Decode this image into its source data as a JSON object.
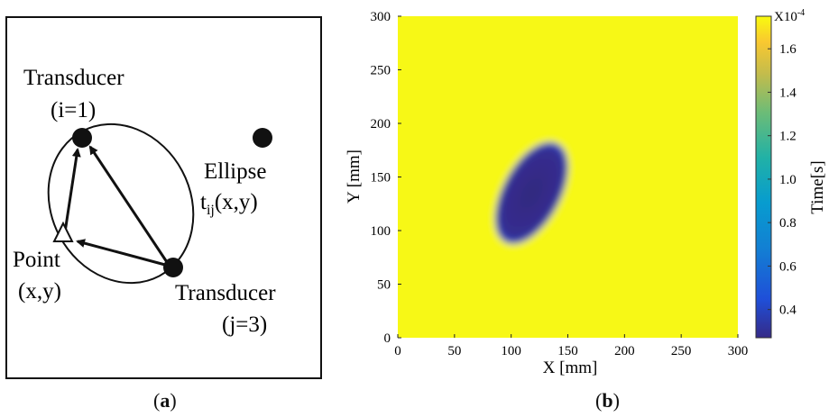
{
  "panel_a": {
    "caption_open": "(",
    "caption_letter": "a",
    "caption_close": ")",
    "transducer_1_name": "Transducer",
    "transducer_1_index": "(i=1)",
    "transducer_2_name": "Transducer",
    "transducer_2_index": "(j=3)",
    "ellipse_label": "Ellipse",
    "ellipse_func_t": "t",
    "ellipse_func_sub": "ij",
    "ellipse_func_args": "(x,y)",
    "point_label": "Point",
    "point_coords": "(x,y)"
  },
  "panel_b": {
    "caption_open": "(",
    "caption_letter": "b",
    "caption_close": ")",
    "colormap": "parula",
    "chart_data": {
      "type": "heatmap",
      "xlabel": "X [mm]",
      "ylabel": "Y [mm]",
      "xlim": [
        0,
        300
      ],
      "ylim": [
        0,
        300
      ],
      "x_ticks": [
        "0",
        "50",
        "100",
        "150",
        "200",
        "250",
        "300"
      ],
      "y_ticks": [
        "0",
        "50",
        "100",
        "150",
        "200",
        "250",
        "300"
      ],
      "colorbar": {
        "label": "Time[s]",
        "multiplier": "X10",
        "exponent": "-4",
        "ticks": [
          "0.4",
          "0.6",
          "0.8",
          "1.0",
          "1.2",
          "1.4",
          "1.6"
        ],
        "tick_values": [
          0.4,
          0.6,
          0.8,
          1.0,
          1.2,
          1.4,
          1.6
        ],
        "range": [
          0.27,
          1.75
        ]
      },
      "minimum_region_center": [
        118,
        135
      ],
      "colors": {
        "low": "#352a87",
        "mid": "#21b1a6",
        "high": "#f9fb0e"
      }
    }
  }
}
